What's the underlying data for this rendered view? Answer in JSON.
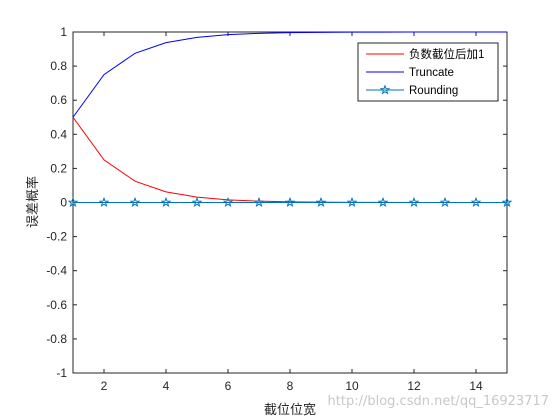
{
  "chart_data": {
    "type": "line",
    "x": [
      1,
      2,
      3,
      4,
      5,
      6,
      7,
      8,
      9,
      10,
      11,
      12,
      13,
      14,
      15
    ],
    "xlim": [
      1,
      15
    ],
    "ylim": [
      -1,
      1
    ],
    "xticks": [
      "2",
      "4",
      "6",
      "8",
      "10",
      "12",
      "14"
    ],
    "yticks": [
      "-1",
      "-0.8",
      "-0.6",
      "-0.4",
      "-0.2",
      "0",
      "0.2",
      "0.4",
      "0.6",
      "0.8",
      "1"
    ],
    "xlabel": "截位位宽",
    "ylabel": "误差概率",
    "grid": false,
    "legend_position": "top-right",
    "series": [
      {
        "name": "负数截位后加1",
        "color": "#ff0000",
        "marker": "none",
        "values": [
          0.5,
          0.25,
          0.125,
          0.0625,
          0.03125,
          0.015625,
          0.0078125,
          0.00390625,
          0.001953,
          0.000977,
          0.000488,
          0.000244,
          0.000122,
          6.1e-05,
          3.1e-05
        ]
      },
      {
        "name": "Truncate",
        "color": "#0000ff",
        "marker": "none",
        "values": [
          0.5,
          0.75,
          0.875,
          0.9375,
          0.96875,
          0.984375,
          0.9921875,
          0.99609375,
          0.998047,
          0.999023,
          0.999512,
          0.999756,
          0.999878,
          0.999939,
          0.999969
        ]
      },
      {
        "name": "Rounding",
        "color": "#0072bd",
        "marker": "pentagram",
        "values": [
          0,
          0,
          0,
          0,
          0,
          0,
          0,
          0,
          0,
          0,
          0,
          0,
          0,
          0,
          0
        ]
      }
    ]
  },
  "watermark": "http://blog.csdn.net/qq_16923717"
}
